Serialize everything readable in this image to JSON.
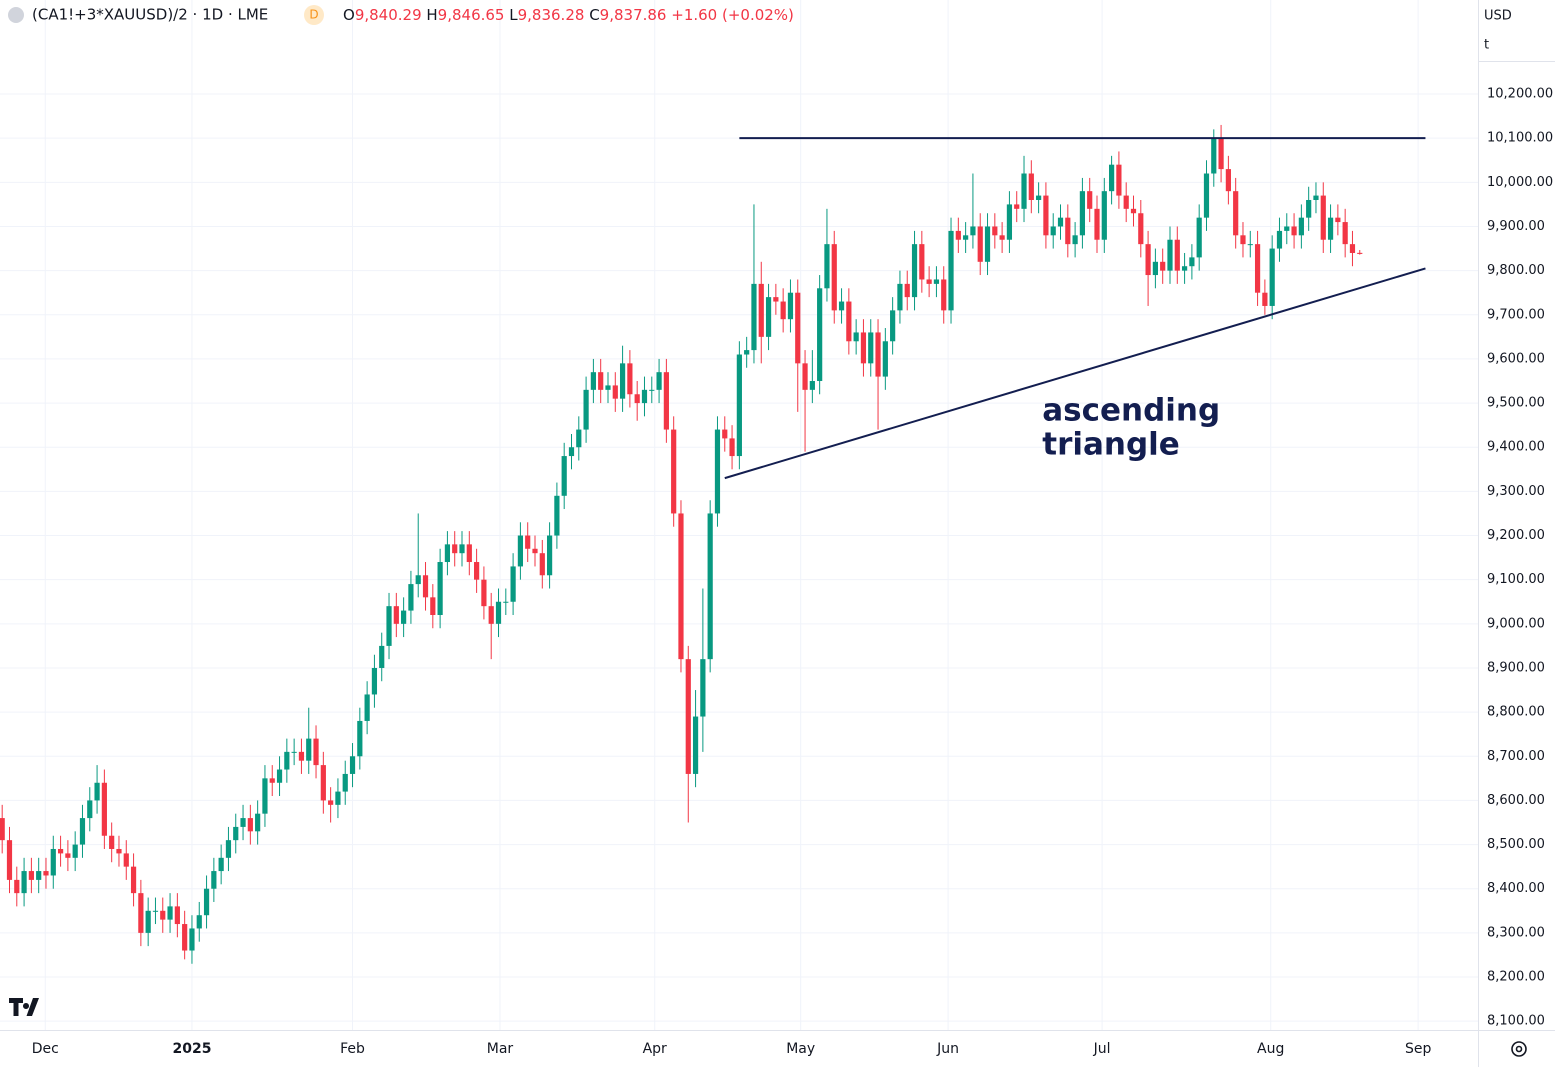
{
  "header": {
    "symbol": "(CA1!+3*XAUUSD)/2 · 1D · LME",
    "badge": "D",
    "ohlc": [
      {
        "key": "O",
        "value": "9,840.29"
      },
      {
        "key": "H",
        "value": "9,846.65"
      },
      {
        "key": "L",
        "value": "9,836.28"
      },
      {
        "key": "C",
        "value": "9,837.86"
      }
    ],
    "change": "+1.60 (+0.02%)"
  },
  "units": [
    "USD",
    "t"
  ],
  "chart_data": {
    "type": "candlestick",
    "up_color": "#089981",
    "down_color": "#f23645",
    "open": [
      8560,
      8510,
      8420,
      8390,
      8440,
      8420,
      8440,
      8430,
      8490,
      8480,
      8470,
      8500,
      8560,
      8600,
      8640,
      8520,
      8490,
      8480,
      8450,
      8390,
      8300,
      8350,
      8350,
      8330,
      8360,
      8320,
      8260,
      8310,
      8340,
      8400,
      8440,
      8470,
      8510,
      8540,
      8560,
      8530,
      8570,
      8650,
      8640,
      8670,
      8710,
      8710,
      8690,
      8740,
      8680,
      8600,
      8590,
      8620,
      8660,
      8700,
      8780,
      8840,
      8900,
      8950,
      9040,
      9000,
      9030,
      9090,
      9110,
      9060,
      9020,
      9140,
      9180,
      9160,
      9180,
      9140,
      9100,
      9040,
      9000,
      9050,
      9050,
      9130,
      9200,
      9170,
      9160,
      9110,
      9200,
      9290,
      9380,
      9400,
      9440,
      9530,
      9570,
      9530,
      9540,
      9510,
      9590,
      9520,
      9500,
      9530,
      9530,
      9570,
      9440,
      9250,
      8920,
      8660,
      8790,
      8920,
      9250,
      9440,
      9420,
      9380,
      9610,
      9620,
      9770,
      9650,
      9740,
      9730,
      9690,
      9750,
      9590,
      9530,
      9550,
      9760,
      9860,
      9710,
      9730,
      9640,
      9660,
      9590,
      9660,
      9560,
      9640,
      9710,
      9770,
      9740,
      9860,
      9780,
      9770,
      9780,
      9710,
      9890,
      9870,
      9880,
      9900,
      9820,
      9900,
      9880,
      9870,
      9950,
      9940,
      10020,
      9960,
      9970,
      9880,
      9900,
      9920,
      9860,
      9880,
      9980,
      9940,
      9870,
      9980,
      10040,
      9970,
      9940,
      9930,
      9860,
      9790,
      9820,
      9800,
      9870,
      9800,
      9810,
      9830,
      9920,
      10020,
      10100,
      10030,
      9980,
      9880,
      9860,
      9860,
      9750,
      9720,
      9850,
      9890,
      9900,
      9880,
      9920,
      9960,
      9970,
      9870,
      9920,
      9910,
      9860,
      9840.29
    ],
    "high": [
      8590,
      8540,
      8450,
      8470,
      8470,
      8470,
      8470,
      8520,
      8520,
      8510,
      8530,
      8590,
      8630,
      8680,
      8670,
      8550,
      8520,
      8510,
      8480,
      8420,
      8380,
      8380,
      8380,
      8390,
      8390,
      8350,
      8340,
      8370,
      8430,
      8470,
      8500,
      8540,
      8570,
      8590,
      8590,
      8600,
      8680,
      8680,
      8700,
      8740,
      8740,
      8740,
      8810,
      8770,
      8710,
      8630,
      8650,
      8690,
      8730,
      8810,
      8870,
      8930,
      8980,
      9070,
      9070,
      9060,
      9120,
      9250,
      9140,
      9090,
      9170,
      9210,
      9210,
      9210,
      9210,
      9170,
      9130,
      9070,
      9080,
      9080,
      9160,
      9230,
      9230,
      9200,
      9190,
      9230,
      9320,
      9410,
      9430,
      9470,
      9560,
      9600,
      9600,
      9570,
      9570,
      9630,
      9620,
      9550,
      9560,
      9560,
      9600,
      9600,
      9470,
      9280,
      8950,
      8850,
      9080,
      9280,
      9470,
      9470,
      9450,
      9640,
      9650,
      9950,
      9820,
      9770,
      9770,
      9760,
      9780,
      9780,
      9620,
      9620,
      9790,
      9940,
      9890,
      9760,
      9760,
      9690,
      9690,
      9690,
      9690,
      9670,
      9740,
      9800,
      9800,
      9890,
      9890,
      9810,
      9810,
      9810,
      9920,
      9920,
      9910,
      10020,
      9930,
      9930,
      9930,
      9910,
      9980,
      9980,
      10060,
      10050,
      10000,
      10000,
      9930,
      9950,
      9950,
      9910,
      10010,
      10010,
      9970,
      10010,
      10060,
      10070,
      10000,
      9970,
      9960,
      9890,
      9850,
      9850,
      9900,
      9900,
      9840,
      9860,
      9950,
      10050,
      10120,
      10130,
      10060,
      10010,
      9910,
      9890,
      9890,
      9780,
      9880,
      9920,
      9930,
      9930,
      9950,
      9990,
      10000,
      10000,
      9950,
      9950,
      9940,
      9890,
      9846.65
    ],
    "low": [
      8480,
      8390,
      8360,
      8360,
      8390,
      8390,
      8400,
      8400,
      8450,
      8440,
      8440,
      8470,
      8530,
      8570,
      8490,
      8460,
      8450,
      8420,
      8360,
      8270,
      8270,
      8320,
      8300,
      8300,
      8290,
      8240,
      8230,
      8280,
      8310,
      8370,
      8410,
      8440,
      8480,
      8510,
      8500,
      8500,
      8540,
      8610,
      8610,
      8640,
      8680,
      8660,
      8660,
      8650,
      8570,
      8550,
      8560,
      8590,
      8630,
      8670,
      8750,
      8810,
      8870,
      8920,
      8970,
      8970,
      9000,
      9060,
      9030,
      8990,
      8990,
      9110,
      9130,
      9130,
      9110,
      9070,
      9010,
      8920,
      8970,
      9020,
      9020,
      9100,
      9140,
      9130,
      9080,
      9080,
      9170,
      9260,
      9350,
      9370,
      9410,
      9500,
      9500,
      9500,
      9480,
      9480,
      9490,
      9460,
      9470,
      9500,
      9500,
      9410,
      9220,
      8890,
      8550,
      8630,
      8710,
      8890,
      9220,
      9390,
      9350,
      9350,
      9580,
      9590,
      9590,
      9620,
      9700,
      9660,
      9660,
      9480,
      9390,
      9500,
      9520,
      9730,
      9680,
      9680,
      9610,
      9610,
      9560,
      9560,
      9440,
      9530,
      9610,
      9680,
      9710,
      9710,
      9750,
      9740,
      9740,
      9680,
      9680,
      9840,
      9840,
      9850,
      9790,
      9790,
      9850,
      9840,
      9840,
      9910,
      9910,
      9930,
      9930,
      9850,
      9850,
      9870,
      9830,
      9830,
      9850,
      9910,
      9840,
      9840,
      9950,
      9940,
      9910,
      9900,
      9830,
      9720,
      9760,
      9770,
      9770,
      9770,
      9770,
      9780,
      9800,
      9890,
      9990,
      10000,
      9950,
      9850,
      9830,
      9830,
      9720,
      9700,
      9690,
      9820,
      9860,
      9850,
      9850,
      9890,
      9930,
      9840,
      9840,
      9880,
      9830,
      9810,
      9836.28
    ],
    "close": [
      8510,
      8420,
      8390,
      8440,
      8420,
      8440,
      8430,
      8490,
      8480,
      8470,
      8500,
      8560,
      8600,
      8640,
      8520,
      8490,
      8480,
      8450,
      8390,
      8300,
      8350,
      8350,
      8330,
      8360,
      8320,
      8260,
      8310,
      8340,
      8400,
      8440,
      8470,
      8510,
      8540,
      8560,
      8530,
      8570,
      8650,
      8640,
      8670,
      8710,
      8710,
      8690,
      8740,
      8680,
      8600,
      8590,
      8620,
      8660,
      8700,
      8780,
      8840,
      8900,
      8950,
      9040,
      9000,
      9030,
      9090,
      9110,
      9060,
      9020,
      9140,
      9180,
      9160,
      9180,
      9140,
      9100,
      9040,
      9000,
      9050,
      9050,
      9130,
      9200,
      9170,
      9160,
      9110,
      9200,
      9290,
      9380,
      9400,
      9440,
      9530,
      9570,
      9530,
      9540,
      9510,
      9590,
      9520,
      9500,
      9530,
      9530,
      9570,
      9440,
      9250,
      8920,
      8660,
      8790,
      8920,
      9250,
      9440,
      9420,
      9380,
      9610,
      9620,
      9770,
      9650,
      9740,
      9730,
      9690,
      9750,
      9590,
      9530,
      9550,
      9760,
      9860,
      9710,
      9730,
      9640,
      9660,
      9590,
      9660,
      9560,
      9640,
      9710,
      9770,
      9740,
      9860,
      9780,
      9770,
      9780,
      9710,
      9890,
      9870,
      9880,
      9900,
      9820,
      9900,
      9880,
      9870,
      9950,
      9940,
      10020,
      9960,
      9970,
      9880,
      9900,
      9920,
      9860,
      9880,
      9980,
      9940,
      9870,
      9980,
      10040,
      9970,
      9940,
      9930,
      9860,
      9790,
      9820,
      9800,
      9870,
      9800,
      9810,
      9830,
      9920,
      10020,
      10100,
      10030,
      9980,
      9880,
      9860,
      9860,
      9750,
      9720,
      9850,
      9890,
      9900,
      9880,
      9920,
      9960,
      9970,
      9870,
      9920,
      9910,
      9860,
      9840,
      9837.86
    ],
    "xlim": [
      -0.3,
      202.2
    ],
    "ylim": [
      8080,
      10413
    ],
    "xticks": [
      {
        "value": 5.9,
        "label": "Dec"
      },
      {
        "value": 26,
        "label": "2025"
      },
      {
        "value": 48,
        "label": "Feb"
      },
      {
        "value": 68.2,
        "label": "Mar"
      },
      {
        "value": 89.4,
        "label": "Apr"
      },
      {
        "value": 109.4,
        "label": "May"
      },
      {
        "value": 129.6,
        "label": "Jun"
      },
      {
        "value": 150.7,
        "label": "Jul"
      },
      {
        "value": 173.8,
        "label": "Aug"
      },
      {
        "value": 194,
        "label": "Sep"
      }
    ],
    "yticks": [
      {
        "value": 8100,
        "label": "8,100.00"
      },
      {
        "value": 8200,
        "label": "8,200.00"
      },
      {
        "value": 8300,
        "label": "8,300.00"
      },
      {
        "value": 8400,
        "label": "8,400.00"
      },
      {
        "value": 8500,
        "label": "8,500.00"
      },
      {
        "value": 8600,
        "label": "8,600.00"
      },
      {
        "value": 8700,
        "label": "8,700.00"
      },
      {
        "value": 8800,
        "label": "8,800.00"
      },
      {
        "value": 8900,
        "label": "8,900.00"
      },
      {
        "value": 9000,
        "label": "9,000.00"
      },
      {
        "value": 9100,
        "label": "9,100.00"
      },
      {
        "value": 9200,
        "label": "9,200.00"
      },
      {
        "value": 9300,
        "label": "9,300.00"
      },
      {
        "value": 9400,
        "label": "9,400.00"
      },
      {
        "value": 9500,
        "label": "9,500.00"
      },
      {
        "value": 9600,
        "label": "9,600.00"
      },
      {
        "value": 9700,
        "label": "9,700.00"
      },
      {
        "value": 9800,
        "label": "9,800.00"
      },
      {
        "value": 9900,
        "label": "9,900.00"
      },
      {
        "value": 10000,
        "label": "10,000.00"
      },
      {
        "value": 10100,
        "label": "10,100.00"
      },
      {
        "value": 10200,
        "label": "10,200.00"
      }
    ],
    "grid": true,
    "trendlines": [
      {
        "x": [
          101,
          195
        ],
        "y": [
          10100,
          10100
        ],
        "color": "#131e50"
      },
      {
        "x": [
          99,
          195
        ],
        "y": [
          9330,
          9805
        ],
        "color": "#131e50"
      }
    ],
    "annotation": {
      "lines": [
        "ascending",
        "triangle"
      ],
      "x": 142.5,
      "y": 9480,
      "color": "#131e50"
    }
  }
}
